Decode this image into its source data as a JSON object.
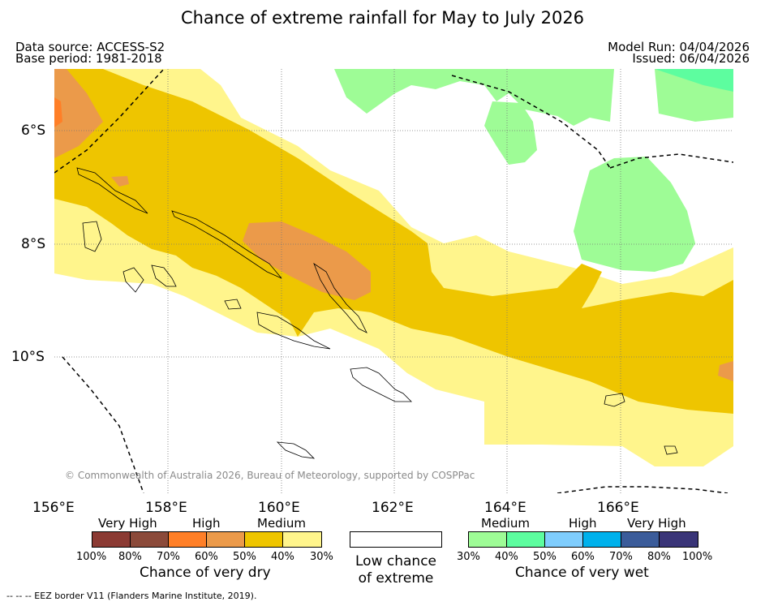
{
  "title": "Chance of extreme rainfall for May to July 2026",
  "header": {
    "data_source": "Data source: ACCESS-S2",
    "base_period": "Base period: 1981-2018",
    "model_run": "Model Run: 04/04/2026",
    "issued": "Issued: 06/04/2026"
  },
  "map": {
    "lat_labels": [
      "6°S",
      "8°S",
      "10°S"
    ],
    "lon_labels": [
      "156°E",
      "158°E",
      "160°E",
      "162°E",
      "164°E",
      "166°E"
    ],
    "copyright": "© Commonwealth of Australia 2026, Bureau of Meteorology, supported by COSPPac",
    "colors": {
      "dry_very_high_1": "#8b3a33",
      "dry_very_high_2": "#8b4a3a",
      "dry_high_1": "#ff7f27",
      "dry_high_2": "#eb9a4a",
      "dry_medium_1": "#eec500",
      "dry_medium_2": "#fff58c",
      "low": "#ffffff",
      "wet_medium_1": "#9efc96",
      "wet_medium_2": "#5dfd9f",
      "wet_high_1": "#7fcdfd",
      "wet_high_2": "#00b1ec",
      "wet_very_high_1": "#3b5c9a",
      "wet_very_high_2": "#3a3578"
    }
  },
  "legend": {
    "dry": {
      "categories": [
        "Very High",
        "High",
        "Medium"
      ],
      "ticks": [
        "100%",
        "80%",
        "70%",
        "60%",
        "50%",
        "40%",
        "30%"
      ],
      "title": "Chance of very dry"
    },
    "low": {
      "title_line1": "Low chance",
      "title_line2": "of extreme"
    },
    "wet": {
      "categories": [
        "Medium",
        "High",
        "Very High"
      ],
      "ticks": [
        "30%",
        "40%",
        "50%",
        "60%",
        "70%",
        "80%",
        "100%"
      ],
      "title": "Chance of very wet"
    }
  },
  "footer": "--  --  -- EEZ border V11 (Flanders Marine Institute, 2019)."
}
